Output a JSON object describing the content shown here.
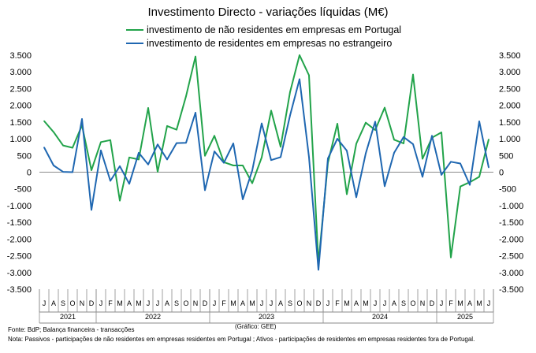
{
  "chart_data": {
    "type": "line",
    "title": "Investimento Directo - variações líquidas (M€)",
    "ylim": [
      -3500,
      3500
    ],
    "yticks": [
      3500,
      3000,
      2500,
      2000,
      1500,
      1000,
      500,
      0,
      -500,
      -1000,
      -1500,
      -2000,
      -2500,
      -3000,
      -3500
    ],
    "ytick_labels": [
      "3.500",
      "3.000",
      "2.500",
      "2.000",
      "1.500",
      "1.000",
      "500",
      "0",
      "-500",
      "-1.000",
      "-1.500",
      "-2.000",
      "-2.500",
      "-3.000",
      "-3.500"
    ],
    "grid": false,
    "legend_position": "top",
    "month_labels": [
      "J",
      "A",
      "S",
      "O",
      "N",
      "D",
      "J",
      "F",
      "M",
      "A",
      "M",
      "J",
      "J",
      "A",
      "S",
      "O",
      "N",
      "D",
      "J",
      "F",
      "M",
      "A",
      "M",
      "J",
      "J",
      "A",
      "S",
      "O",
      "N",
      "D",
      "J",
      "F",
      "M",
      "A",
      "M",
      "J",
      "J",
      "A",
      "S",
      "O",
      "N",
      "D",
      "J",
      "F",
      "M",
      "A",
      "M",
      "J"
    ],
    "years": [
      {
        "label": "2021",
        "start": 0,
        "end": 5
      },
      {
        "label": "2022",
        "start": 6,
        "end": 17
      },
      {
        "label": "2023",
        "start": 18,
        "end": 29
      },
      {
        "label": "2024",
        "start": 30,
        "end": 41
      },
      {
        "label": "2025",
        "start": 42,
        "end": 47
      }
    ],
    "series": [
      {
        "name": "investimento de não residentes em empresas em Portugal",
        "color": "#22a34a",
        "values": [
          1530,
          1200,
          800,
          730,
          1400,
          60,
          900,
          960,
          -850,
          440,
          380,
          1920,
          10,
          1380,
          1270,
          2270,
          3460,
          490,
          1090,
          300,
          200,
          200,
          -330,
          440,
          1840,
          760,
          2400,
          3500,
          2900,
          -2730,
          280,
          1450,
          -660,
          850,
          1480,
          1260,
          1930,
          970,
          860,
          2920,
          400,
          1030,
          1190,
          -2550,
          -430,
          -300,
          -140,
          980
        ]
      },
      {
        "name": "investimento de residentes em empresas no estrangeiro",
        "color": "#1f67b1",
        "values": [
          740,
          200,
          10,
          0,
          1590,
          -1130,
          650,
          -260,
          180,
          -350,
          580,
          230,
          830,
          380,
          870,
          880,
          1780,
          -540,
          620,
          280,
          860,
          -810,
          50,
          1460,
          360,
          450,
          1700,
          2780,
          450,
          -2920,
          410,
          1000,
          640,
          -750,
          560,
          1510,
          -420,
          580,
          1050,
          840,
          -140,
          1090,
          -80,
          310,
          260,
          -380,
          1520,
          140
        ]
      }
    ]
  },
  "footer": {
    "source": "Fonte: BdP; Balança financeira - transacções",
    "credit": "(Gráfico: GEE)",
    "note": "Nota: Passivos - participações de não residentes em empresas residentes em Portugal ; Ativos - participações de residentes em empresas residentes fora de Portugal."
  }
}
